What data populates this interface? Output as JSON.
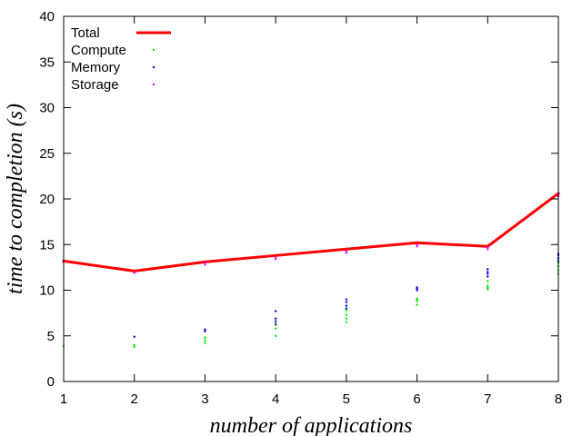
{
  "chart_data": {
    "type": "scatter",
    "title": "",
    "xlabel": "number of applications",
    "ylabel": "time to completion (s)",
    "xlim": [
      1,
      8
    ],
    "ylim": [
      0,
      40
    ],
    "x_ticks": [
      1,
      2,
      3,
      4,
      5,
      6,
      7,
      8
    ],
    "y_ticks": [
      0,
      5,
      10,
      15,
      20,
      25,
      30,
      35,
      40
    ],
    "grid": false,
    "legend_position": "top-left",
    "series": [
      {
        "name": "Total",
        "kind": "line",
        "color": "#ff0000",
        "points": [
          [
            1,
            13.2
          ],
          [
            2,
            12.1
          ],
          [
            3,
            13.1
          ],
          [
            4,
            13.8
          ],
          [
            5,
            14.5
          ],
          [
            6,
            15.2
          ],
          [
            7,
            14.8
          ],
          [
            8,
            20.6
          ]
        ]
      },
      {
        "name": "Compute",
        "kind": "points",
        "color": "#00ee00",
        "points": [
          [
            1,
            3.9
          ],
          [
            2,
            3.8
          ],
          [
            2,
            4.0
          ],
          [
            3,
            4.2
          ],
          [
            3,
            4.5
          ],
          [
            3,
            4.8
          ],
          [
            4,
            5.0
          ],
          [
            4,
            5.8
          ],
          [
            4,
            6.2
          ],
          [
            5,
            6.5
          ],
          [
            5,
            6.9
          ],
          [
            5,
            7.3
          ],
          [
            5,
            7.8
          ],
          [
            6,
            8.4
          ],
          [
            6,
            8.8
          ],
          [
            6,
            9.0
          ],
          [
            6,
            9.1
          ],
          [
            7,
            10.1
          ],
          [
            7,
            10.3
          ],
          [
            7,
            10.5
          ],
          [
            7,
            11.0
          ],
          [
            8,
            11.8
          ],
          [
            8,
            12.2
          ],
          [
            8,
            12.6
          ],
          [
            8,
            13.0
          ]
        ]
      },
      {
        "name": "Memory",
        "kind": "points",
        "color": "#0000ee",
        "points": [
          [
            2,
            4.9
          ],
          [
            3,
            5.5
          ],
          [
            3,
            5.7
          ],
          [
            4,
            6.3
          ],
          [
            4,
            6.6
          ],
          [
            4,
            6.9
          ],
          [
            4,
            7.7
          ],
          [
            5,
            8.0
          ],
          [
            5,
            8.3
          ],
          [
            5,
            8.7
          ],
          [
            5,
            9.0
          ],
          [
            6,
            10.0
          ],
          [
            6,
            10.2
          ],
          [
            6,
            10.3
          ],
          [
            7,
            11.5
          ],
          [
            7,
            11.8
          ],
          [
            7,
            12.0
          ],
          [
            7,
            12.3
          ],
          [
            8,
            13.2
          ],
          [
            8,
            13.5
          ],
          [
            8,
            13.8
          ],
          [
            8,
            14.0
          ]
        ]
      },
      {
        "name": "Storage",
        "kind": "points",
        "color": "#ee00ee",
        "points": [
          [
            1,
            13.1
          ],
          [
            2,
            11.9
          ],
          [
            2,
            12.0
          ],
          [
            3,
            12.8
          ],
          [
            3,
            13.0
          ],
          [
            4,
            13.4
          ],
          [
            4,
            13.6
          ],
          [
            5,
            14.1
          ],
          [
            5,
            14.3
          ],
          [
            6,
            14.8
          ],
          [
            6,
            15.0
          ],
          [
            7,
            14.5
          ],
          [
            7,
            14.7
          ],
          [
            8,
            20.3
          ],
          [
            8,
            20.6
          ]
        ]
      }
    ]
  }
}
